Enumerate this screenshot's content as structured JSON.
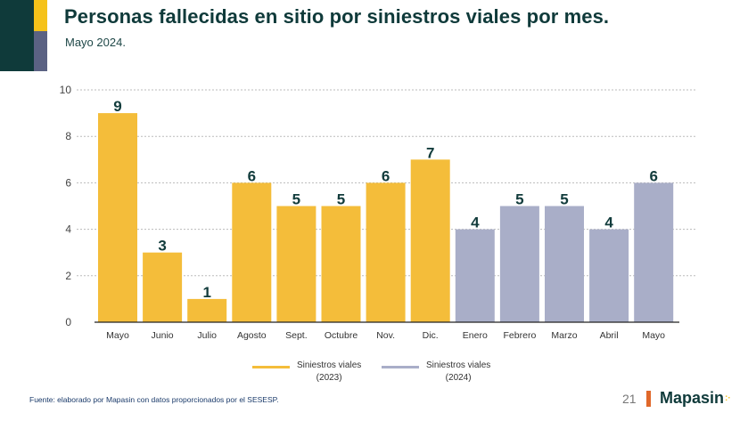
{
  "header": {
    "title": "Personas fallecidas en sitio por siniestros viales por mes.",
    "subtitle": "Mayo 2024."
  },
  "colors": {
    "series_2023": "#f4bd3a",
    "series_2024": "#a9aec8",
    "value_label": "#123c3c",
    "grid": "#bbbbbb",
    "axis": "#222222",
    "brand_dark": "#0f3a3a",
    "brand_yellow": "#f5c21a",
    "brand_slate": "#5b6283",
    "brand_orange": "#e0682a"
  },
  "chart_data": {
    "type": "bar",
    "title": "Personas fallecidas en sitio por siniestros viales por mes.",
    "subtitle": "Mayo 2024.",
    "xlabel": "",
    "ylabel": "",
    "ylim": [
      0,
      10
    ],
    "yticks": [
      0,
      2,
      4,
      6,
      8,
      10
    ],
    "grid": true,
    "legend_position": "bottom",
    "categories": [
      "Mayo",
      "Junio",
      "Julio",
      "Agosto",
      "Sept.",
      "Octubre",
      "Nov.",
      "Dic.",
      "Enero",
      "Febrero",
      "Marzo",
      "Abril",
      "Mayo"
    ],
    "values": [
      9,
      3,
      1,
      6,
      5,
      5,
      6,
      7,
      4,
      5,
      5,
      4,
      6
    ],
    "series_index": [
      0,
      0,
      0,
      0,
      0,
      0,
      0,
      0,
      1,
      1,
      1,
      1,
      1
    ],
    "series": [
      {
        "name": "Siniestros viales (2023)",
        "line1": "Siniestros viales",
        "line2": "(2023)",
        "color": "#f4bd3a"
      },
      {
        "name": "Siniestros viales (2024)",
        "line1": "Siniestros viales",
        "line2": "(2024)",
        "color": "#a9aec8"
      }
    ]
  },
  "footer": {
    "source": "Fuente: elaborado por Mapasin con datos proporcionados por el SESESP.",
    "page_number": "21",
    "brand": "Mapasin",
    "brand_suffix": ":·"
  }
}
